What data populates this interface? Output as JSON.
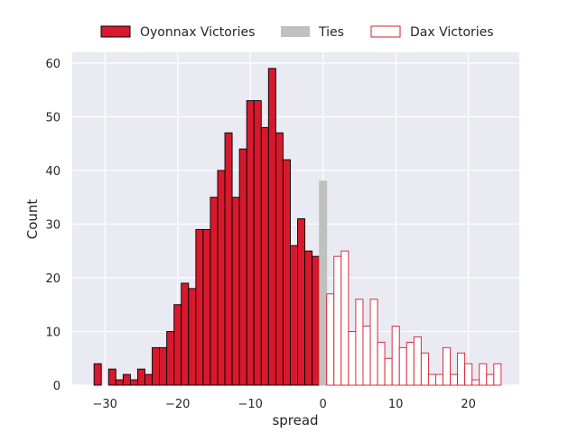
{
  "chart_data": {
    "type": "bar",
    "xlabel": "spread",
    "ylabel": "Count",
    "xlim": [
      -34.5,
      27
    ],
    "ylim": [
      0,
      62
    ],
    "bin_width": 1,
    "grid": true,
    "legend_position": "top-center",
    "x_ticks": [
      -30,
      -20,
      -10,
      0,
      10,
      20
    ],
    "x_tick_labels": [
      "−30",
      "−20",
      "−10",
      "0",
      "10",
      "20"
    ],
    "y_ticks": [
      0,
      10,
      20,
      30,
      40,
      50,
      60
    ],
    "y_tick_labels": [
      "0",
      "10",
      "20",
      "30",
      "40",
      "50",
      "60"
    ],
    "series": [
      {
        "name": "Oyonnax Victories",
        "color": "#d7192d",
        "edge": "#000000",
        "x": [
          -31,
          -30,
          -29,
          -28,
          -27,
          -26,
          -25,
          -24,
          -23,
          -22,
          -21,
          -20,
          -19,
          -18,
          -17,
          -16,
          -15,
          -14,
          -13,
          -12,
          -11,
          -10,
          -9,
          -8,
          -7,
          -6,
          -5,
          -4,
          -3,
          -2,
          -1
        ],
        "values": [
          4,
          0,
          3,
          1,
          2,
          1,
          3,
          2,
          7,
          7,
          10,
          15,
          19,
          18,
          29,
          29,
          35,
          40,
          47,
          35,
          44,
          53,
          53,
          48,
          59,
          47,
          42,
          26,
          31,
          25,
          24
        ]
      },
      {
        "name": "Ties",
        "color": "#c0c0c0",
        "edge": "#c0c0c0",
        "x": [
          0
        ],
        "values": [
          38
        ]
      },
      {
        "name": "Dax Victories",
        "color": "#ffffff",
        "edge": "#d7192d",
        "x": [
          1,
          2,
          3,
          4,
          5,
          6,
          7,
          8,
          9,
          10,
          11,
          12,
          13,
          14,
          15,
          16,
          17,
          18,
          19,
          20,
          21,
          22,
          23,
          24
        ],
        "values": [
          17,
          24,
          25,
          10,
          16,
          11,
          16,
          8,
          5,
          11,
          7,
          8,
          9,
          6,
          2,
          2,
          7,
          2,
          6,
          4,
          1,
          4,
          2,
          4
        ]
      }
    ]
  }
}
